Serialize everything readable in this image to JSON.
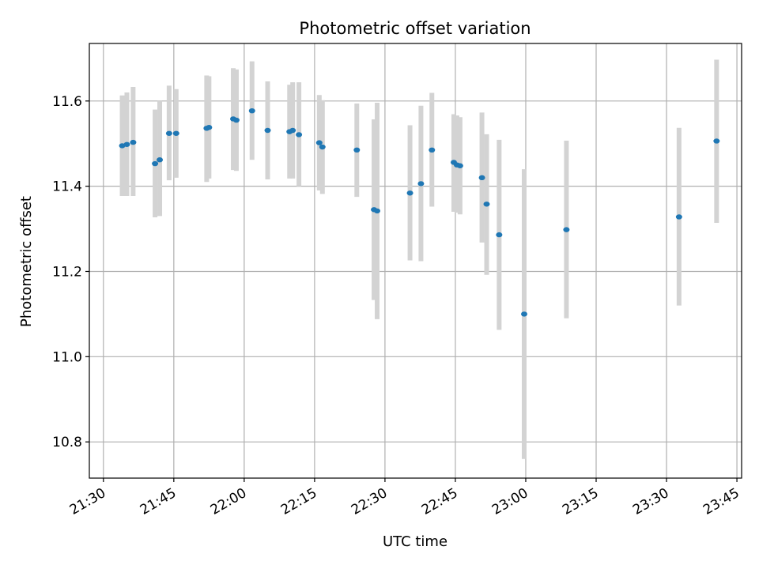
{
  "chart_data": {
    "type": "scatter",
    "title": "Photometric offset variation",
    "xlabel": "UTC time",
    "ylabel": "Photometric offset",
    "xlim": [
      "21:27",
      "23:46"
    ],
    "ylim": [
      10.715,
      11.735
    ],
    "x_ticks": [
      "21:30",
      "21:45",
      "22:00",
      "22:15",
      "22:30",
      "22:45",
      "23:00",
      "23:15",
      "23:30",
      "23:45"
    ],
    "y_ticks": [
      10.8,
      11.0,
      11.2,
      11.4,
      11.6
    ],
    "grid": true,
    "colors": {
      "point": "#1f77b4",
      "errorbar": "#d3d3d3"
    },
    "series": [
      {
        "points": [
          {
            "x": "21:34:00",
            "y": 11.495,
            "ylo": 11.377,
            "yhi": 11.613
          },
          {
            "x": "21:35:00",
            "y": 11.498,
            "ylo": 11.377,
            "yhi": 11.62
          },
          {
            "x": "21:36:20",
            "y": 11.503,
            "ylo": 11.377,
            "yhi": 11.633
          },
          {
            "x": "21:41:00",
            "y": 11.453,
            "ylo": 11.327,
            "yhi": 11.58
          },
          {
            "x": "21:42:00",
            "y": 11.462,
            "ylo": 11.33,
            "yhi": 11.6
          },
          {
            "x": "21:44:00",
            "y": 11.524,
            "ylo": 11.414,
            "yhi": 11.636
          },
          {
            "x": "21:45:30",
            "y": 11.524,
            "ylo": 11.42,
            "yhi": 11.628
          },
          {
            "x": "21:52:00",
            "y": 11.536,
            "ylo": 11.41,
            "yhi": 11.66
          },
          {
            "x": "21:52:30",
            "y": 11.538,
            "ylo": 11.418,
            "yhi": 11.658
          },
          {
            "x": "21:57:40",
            "y": 11.558,
            "ylo": 11.438,
            "yhi": 11.677
          },
          {
            "x": "21:58:20",
            "y": 11.555,
            "ylo": 11.436,
            "yhi": 11.674
          },
          {
            "x": "22:01:40",
            "y": 11.577,
            "ylo": 11.462,
            "yhi": 11.693
          },
          {
            "x": "22:05:00",
            "y": 11.531,
            "ylo": 11.416,
            "yhi": 11.646
          },
          {
            "x": "22:09:40",
            "y": 11.528,
            "ylo": 11.418,
            "yhi": 11.638
          },
          {
            "x": "22:10:20",
            "y": 11.531,
            "ylo": 11.418,
            "yhi": 11.644
          },
          {
            "x": "22:11:40",
            "y": 11.521,
            "ylo": 11.4,
            "yhi": 11.644
          },
          {
            "x": "22:16:00",
            "y": 11.502,
            "ylo": 11.39,
            "yhi": 11.614
          },
          {
            "x": "22:16:40",
            "y": 11.492,
            "ylo": 11.382,
            "yhi": 11.602
          },
          {
            "x": "22:24:00",
            "y": 11.485,
            "ylo": 11.375,
            "yhi": 11.594
          },
          {
            "x": "22:27:40",
            "y": 11.345,
            "ylo": 11.133,
            "yhi": 11.557
          },
          {
            "x": "22:28:20",
            "y": 11.342,
            "ylo": 11.088,
            "yhi": 11.596
          },
          {
            "x": "22:35:20",
            "y": 11.384,
            "ylo": 11.226,
            "yhi": 11.543
          },
          {
            "x": "22:37:40",
            "y": 11.406,
            "ylo": 11.224,
            "yhi": 11.589
          },
          {
            "x": "22:40:00",
            "y": 11.485,
            "ylo": 11.352,
            "yhi": 11.619
          },
          {
            "x": "22:44:40",
            "y": 11.456,
            "ylo": 11.34,
            "yhi": 11.569
          },
          {
            "x": "22:45:20",
            "y": 11.45,
            "ylo": 11.338,
            "yhi": 11.566
          },
          {
            "x": "22:46:00",
            "y": 11.448,
            "ylo": 11.334,
            "yhi": 11.562
          },
          {
            "x": "22:50:40",
            "y": 11.42,
            "ylo": 11.268,
            "yhi": 11.573
          },
          {
            "x": "22:51:40",
            "y": 11.358,
            "ylo": 11.192,
            "yhi": 11.522
          },
          {
            "x": "22:54:20",
            "y": 11.286,
            "ylo": 11.063,
            "yhi": 11.509
          },
          {
            "x": "22:59:40",
            "y": 11.1,
            "ylo": 10.76,
            "yhi": 11.44
          },
          {
            "x": "23:08:40",
            "y": 11.298,
            "ylo": 11.09,
            "yhi": 11.507
          },
          {
            "x": "23:32:40",
            "y": 11.328,
            "ylo": 11.12,
            "yhi": 11.537
          },
          {
            "x": "23:40:40",
            "y": 11.506,
            "ylo": 11.314,
            "yhi": 11.697
          }
        ]
      }
    ]
  }
}
